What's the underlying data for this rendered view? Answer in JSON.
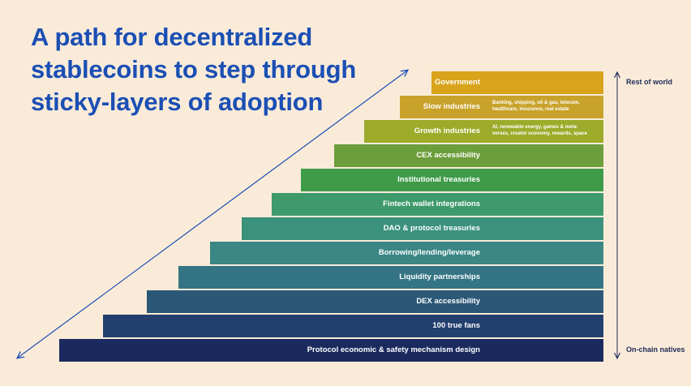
{
  "title_lines": [
    "A path for decentralized",
    "stablecoins to step through",
    "sticky-layers of adoption"
  ],
  "side_labels": {
    "top": "Rest of world",
    "bottom": "On-chain natives"
  },
  "layers": [
    {
      "label": "Government",
      "color": "#d9a41b"
    },
    {
      "label": "Slow industries",
      "color": "#c8a22a",
      "detail": [
        "Banking, shipping, oil & gas, telecom,",
        "healthcare, insurance, real estate"
      ]
    },
    {
      "label": "Growth industries",
      "color": "#9cab2a",
      "detail": [
        "AI, renewable energy, games & meta-",
        "verses, creator economy, rewards, space"
      ]
    },
    {
      "label": "CEX accessibility",
      "color": "#6c9e3b"
    },
    {
      "label": "Institutional treasuries",
      "color": "#3e9b48"
    },
    {
      "label": "Fintech wallet integrations",
      "color": "#3e9a6a"
    },
    {
      "label": "DAO & protocol treasuries",
      "color": "#3a917c"
    },
    {
      "label": "Borrowing/lending/leverage",
      "color": "#3a8785"
    },
    {
      "label": "Liquidity partnerships",
      "color": "#357484"
    },
    {
      "label": "DEX accessibility",
      "color": "#2b5876"
    },
    {
      "label": "100 true fans",
      "color": "#223f6d"
    },
    {
      "label": "Protocol economic & safety mechanism design",
      "color": "#1b2a5e"
    }
  ]
}
